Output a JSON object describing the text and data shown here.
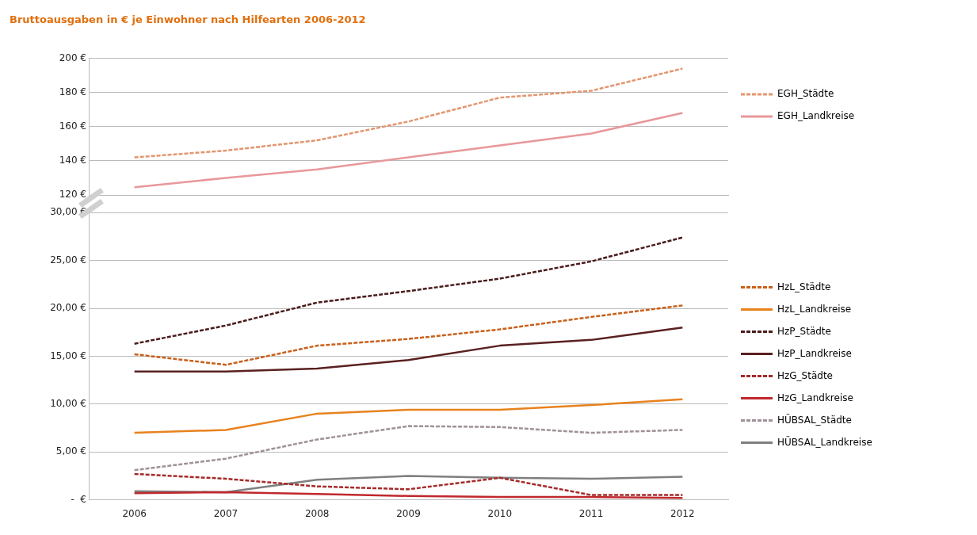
{
  "chart_data": [
    {
      "type": "line",
      "title": "Bruttoausgaben in € je Einwohner nach Hilfearten 2006-2012",
      "categories": [
        "2006",
        "2007",
        "2008",
        "2009",
        "2010",
        "2011",
        "2012"
      ],
      "ylim": [
        120,
        200
      ],
      "yticks": [
        {
          "value": 120,
          "label": "120 €"
        },
        {
          "value": 140,
          "label": "140 €"
        },
        {
          "value": 160,
          "label": "160 €"
        },
        {
          "value": 180,
          "label": "180 €"
        },
        {
          "value": 200,
          "label": "200 €"
        }
      ],
      "tick_labels": "y",
      "grid": "y",
      "legend": "right",
      "marker": "none",
      "series": [
        {
          "name": "EGH_Städte",
          "color": "#e3956e",
          "line_style": "dashed",
          "values": [
            142,
            146,
            152,
            163,
            177,
            181,
            194
          ]
        },
        {
          "name": "EGH_Landkreise",
          "color": "#e8989a",
          "line_style": "solid",
          "values": [
            124.5,
            130,
            135,
            142,
            149,
            156,
            168
          ]
        }
      ]
    },
    {
      "type": "line",
      "categories": [
        "2006",
        "2007",
        "2008",
        "2009",
        "2010",
        "2011",
        "2012"
      ],
      "ylim": [
        0,
        30
      ],
      "yticks": [
        {
          "value": 0,
          "label": "-  €"
        },
        {
          "value": 5,
          "label": "5,00 €"
        },
        {
          "value": 10,
          "label": "10,00 €"
        },
        {
          "value": 15,
          "label": "15,00 €"
        },
        {
          "value": 20,
          "label": "20,00 €"
        },
        {
          "value": 25,
          "label": "25,00 €"
        },
        {
          "value": 30,
          "label": "30,00 €"
        }
      ],
      "grid": "y",
      "legend": "right",
      "marker": "none",
      "series": [
        {
          "name": "HzL_Städte",
          "color": "#c8601a",
          "line_style": "dashed",
          "values": [
            15.2,
            14.1,
            16.1,
            16.8,
            17.8,
            19.1,
            20.3
          ]
        },
        {
          "name": "HzL_Landkreise",
          "color": "#e8821e",
          "line_style": "solid",
          "values": [
            7.0,
            7.3,
            9.0,
            9.4,
            9.4,
            9.9,
            10.5
          ]
        },
        {
          "name": "HzP_Städte",
          "color": "#4a1c1c",
          "line_style": "dashed",
          "values": [
            16.3,
            18.2,
            20.6,
            21.8,
            23.1,
            24.9,
            27.4
          ]
        },
        {
          "name": "HzP_Landkreise",
          "color": "#5a2020",
          "line_style": "solid",
          "values": [
            13.4,
            13.4,
            13.7,
            14.6,
            16.1,
            16.7,
            18.0
          ]
        },
        {
          "name": "HzG_Städte",
          "color": "#a52a2a",
          "line_style": "dashed",
          "values": [
            2.7,
            2.2,
            1.4,
            1.1,
            2.3,
            0.5,
            0.5
          ]
        },
        {
          "name": "HzG_Landkreise",
          "color": "#c0282d",
          "line_style": "solid",
          "values": [
            0.7,
            0.8,
            0.6,
            0.4,
            0.3,
            0.3,
            0.2
          ]
        },
        {
          "name": "HÜBSAL_Städte",
          "color": "#a0909a",
          "line_style": "dashed",
          "values": [
            3.1,
            4.3,
            6.3,
            7.7,
            7.6,
            7.0,
            7.3
          ]
        },
        {
          "name": "HÜBSAL_Landkreise",
          "color": "#7f7f7f",
          "line_style": "solid",
          "values": [
            0.9,
            0.8,
            2.1,
            2.5,
            2.3,
            2.2,
            2.4
          ]
        }
      ]
    }
  ]
}
